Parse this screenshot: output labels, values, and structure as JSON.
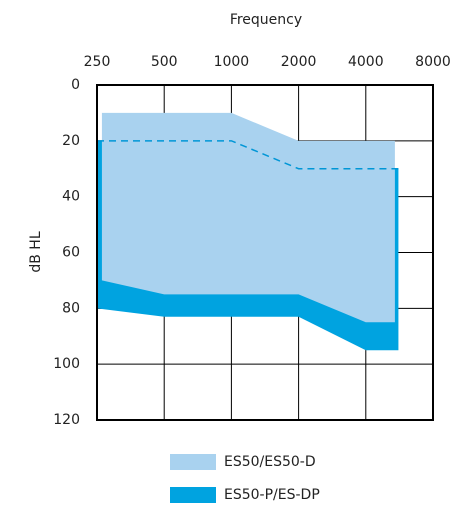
{
  "chart_data": {
    "type": "range-area",
    "x_label": "Frequency",
    "y_label": "dB HL",
    "xlim": [
      250,
      8000
    ],
    "xticks": [
      250,
      500,
      1000,
      2000,
      4000,
      8000
    ],
    "xscale": "log",
    "ylim": [
      0,
      120
    ],
    "yticks": [
      0,
      20,
      40,
      60,
      80,
      100,
      120
    ],
    "y_inverted": true,
    "grid": true,
    "series": [
      {
        "name": "ES50-P/ES-DP",
        "color": "#00a3e0",
        "dashed_top_color": "#0096d6",
        "x": [
          250,
          500,
          1000,
          2000,
          4000,
          5600
        ],
        "top": [
          20,
          20,
          20,
          30,
          30,
          30
        ],
        "bottom": [
          80,
          83,
          83,
          83,
          95,
          95
        ]
      },
      {
        "name": "ES50/ES50-D",
        "color": "#a9d2ef",
        "x": [
          263,
          500,
          1000,
          2000,
          4000,
          5400
        ],
        "top": [
          10,
          10,
          10,
          20,
          20,
          20
        ],
        "bottom": [
          70,
          75,
          75,
          75,
          85,
          85
        ]
      }
    ],
    "legend_order": [
      1,
      0
    ]
  }
}
